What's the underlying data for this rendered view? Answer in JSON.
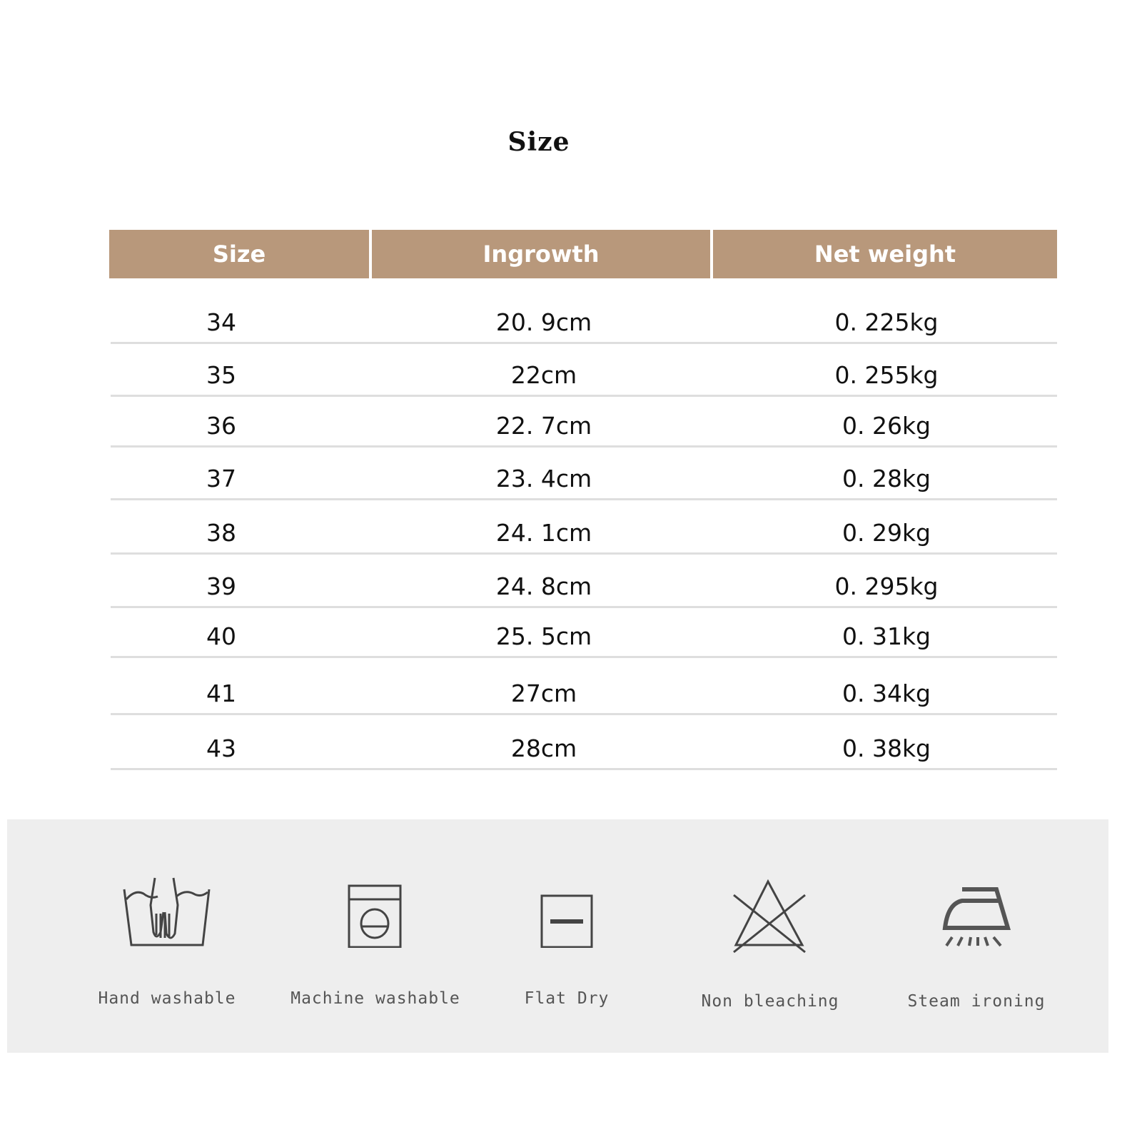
{
  "title": "Size",
  "table": {
    "header_color": "#b8987b",
    "columns": [
      "Size",
      "Ingrowth",
      "Net weight"
    ],
    "rows": [
      [
        "34",
        "20. 9cm",
        "0. 225kg"
      ],
      [
        "35",
        "22cm",
        "0. 255kg"
      ],
      [
        "36",
        "22. 7cm",
        "0. 26kg"
      ],
      [
        "37",
        "23. 4cm",
        "0. 28kg"
      ],
      [
        "38",
        "24. 1cm",
        "0. 29kg"
      ],
      [
        "39",
        "24. 8cm",
        "0. 295kg"
      ],
      [
        "40",
        "25. 5cm",
        "0. 31kg"
      ],
      [
        "41",
        "27cm",
        "0. 34kg"
      ],
      [
        "43",
        "28cm",
        "0. 38kg"
      ]
    ]
  },
  "care": [
    {
      "icon": "hand-wash-icon",
      "label": "Hand washable"
    },
    {
      "icon": "machine-wash-icon",
      "label": "Machine washable"
    },
    {
      "icon": "flat-dry-icon",
      "label": "Flat Dry"
    },
    {
      "icon": "non-bleach-icon",
      "label": "Non bleaching"
    },
    {
      "icon": "steam-iron-icon",
      "label": "Steam ironing"
    }
  ]
}
